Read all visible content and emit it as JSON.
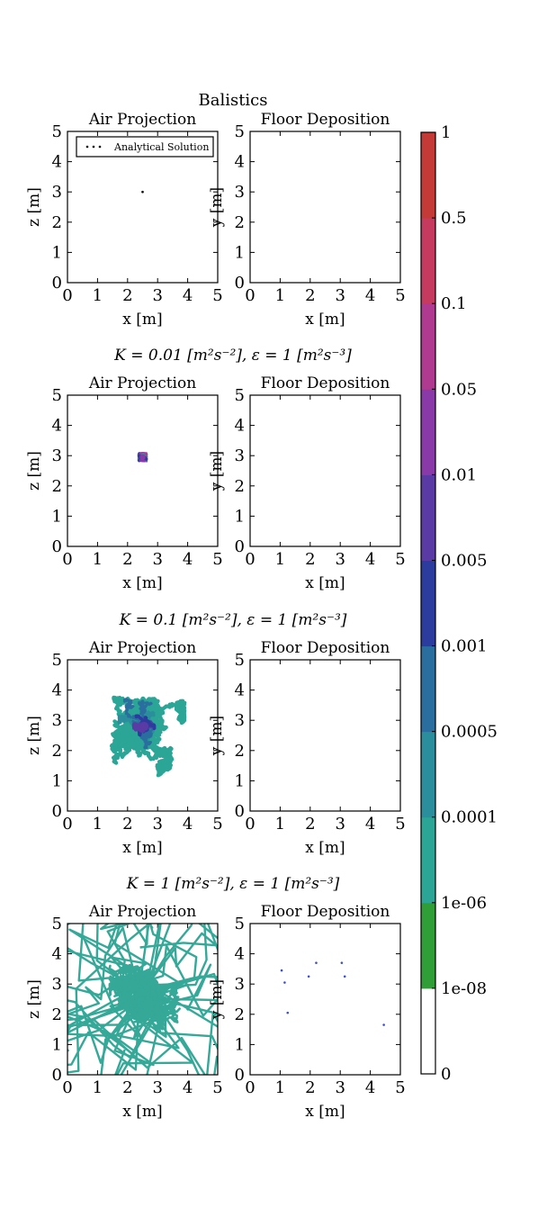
{
  "suptitle": "Balistics",
  "panel_titles": {
    "air": "Air Projection",
    "floor": "Floor Deposition"
  },
  "axis_labels": {
    "x": "x [m]",
    "z": "z [m]",
    "y": "y [m]"
  },
  "legend_label": "Analytical Solution",
  "row_titles": [
    "",
    "K = 0.01 [m²s⁻²], ε = 1 [m²s⁻³]",
    "K = 0.1 [m²s⁻²], ε = 1 [m²s⁻³]",
    "K = 1 [m²s⁻²], ε = 1 [m²s⁻³]"
  ],
  "colors": {
    "levels": [
      "#ffffff",
      "#2f9e37",
      "#2aa596",
      "#2a8e9c",
      "#2a6ea0",
      "#2b3c9e",
      "#5a3aa5",
      "#8a3aa8",
      "#b03a8f",
      "#c53a5e",
      "#c43a36",
      "#8a1f1f"
    ],
    "trajectory": "#35a898"
  },
  "chart_data": [
    {
      "type": "scatter",
      "title": "Air Projection",
      "xlabel": "x [m]",
      "ylabel": "z [m]",
      "xlim": [
        0,
        5
      ],
      "ylim": [
        0,
        5
      ],
      "x_ticks": [
        "0",
        "1",
        "2",
        "3",
        "4",
        "5"
      ],
      "y_ticks": [
        "0",
        "1",
        "2",
        "3",
        "4",
        "5"
      ],
      "legend": "top-left",
      "series": [
        {
          "name": "Analytical Solution",
          "x": [
            2.5
          ],
          "y": [
            3.0
          ]
        }
      ]
    },
    {
      "type": "scatter",
      "title": "Floor Deposition",
      "xlabel": "x [m]",
      "ylabel": "y [m]",
      "xlim": [
        0,
        5
      ],
      "ylim": [
        0,
        5
      ],
      "x_ticks": [
        "0",
        "1",
        "2",
        "3",
        "4",
        "5"
      ],
      "y_ticks": [
        "0",
        "1",
        "2",
        "3",
        "4",
        "5"
      ],
      "points": []
    },
    {
      "type": "heatmap",
      "title": "Air Projection",
      "xlabel": "x [m]",
      "ylabel": "z [m]",
      "xlim": [
        0,
        5
      ],
      "ylim": [
        0,
        5
      ],
      "x_ticks": [
        "0",
        "1",
        "2",
        "3",
        "4",
        "5"
      ],
      "y_ticks": [
        "0",
        "1",
        "2",
        "3",
        "4",
        "5"
      ],
      "cloud_center": [
        2.5,
        2.95
      ],
      "cloud_extent": [
        2.35,
        2.65,
        2.8,
        3.1
      ]
    },
    {
      "type": "scatter",
      "title": "Floor Deposition",
      "xlabel": "x [m]",
      "ylabel": "y [m]",
      "xlim": [
        0,
        5
      ],
      "ylim": [
        0,
        5
      ],
      "x_ticks": [
        "0",
        "1",
        "2",
        "3",
        "4",
        "5"
      ],
      "y_ticks": [
        "0",
        "1",
        "2",
        "3",
        "4",
        "5"
      ],
      "points": []
    },
    {
      "type": "heatmap",
      "title": "Air Projection",
      "xlabel": "x [m]",
      "ylabel": "z [m]",
      "xlim": [
        0,
        5
      ],
      "ylim": [
        0,
        5
      ],
      "x_ticks": [
        "0",
        "1",
        "2",
        "3",
        "4",
        "5"
      ],
      "y_ticks": [
        "0",
        "1",
        "2",
        "3",
        "4",
        "5"
      ],
      "cloud_center": [
        2.55,
        2.8
      ],
      "cloud_extent": [
        0.7,
        3.9,
        1.1,
        4.6
      ]
    },
    {
      "type": "scatter",
      "title": "Floor Deposition",
      "xlabel": "x [m]",
      "ylabel": "y [m]",
      "xlim": [
        0,
        5
      ],
      "ylim": [
        0,
        5
      ],
      "x_ticks": [
        "0",
        "1",
        "2",
        "3",
        "4",
        "5"
      ],
      "y_ticks": [
        "0",
        "1",
        "2",
        "3",
        "4",
        "5"
      ],
      "points": []
    },
    {
      "type": "heatmap",
      "title": "Air Projection",
      "xlabel": "x [m]",
      "ylabel": "z [m]",
      "xlim": [
        0,
        5
      ],
      "ylim": [
        0,
        5
      ],
      "x_ticks": [
        "0",
        "1",
        "2",
        "3",
        "4",
        "5"
      ],
      "y_ticks": [
        "0",
        "1",
        "2",
        "3",
        "4",
        "5"
      ],
      "cloud_center": [
        2.6,
        2.7
      ],
      "cloud_extent": [
        0,
        5,
        0,
        5
      ]
    },
    {
      "type": "scatter",
      "title": "Floor Deposition",
      "xlabel": "x [m]",
      "ylabel": "y [m]",
      "xlim": [
        0,
        5
      ],
      "ylim": [
        0,
        5
      ],
      "x_ticks": [
        "0",
        "1",
        "2",
        "3",
        "4",
        "5"
      ],
      "y_ticks": [
        "0",
        "1",
        "2",
        "3",
        "4",
        "5"
      ],
      "points": [
        {
          "x": 1.05,
          "y": 3.45
        },
        {
          "x": 1.15,
          "y": 3.05
        },
        {
          "x": 1.25,
          "y": 2.05
        },
        {
          "x": 1.95,
          "y": 3.25
        },
        {
          "x": 2.2,
          "y": 3.7
        },
        {
          "x": 3.05,
          "y": 3.7
        },
        {
          "x": 3.15,
          "y": 3.25
        },
        {
          "x": 4.45,
          "y": 1.65
        }
      ]
    },
    {
      "type": "heatmap",
      "title": "colorbar",
      "tick_labels": [
        "0",
        "1e-08",
        "1e-06",
        "0.0001",
        "0.0005",
        "0.001",
        "0.005",
        "0.01",
        "0.05",
        "0.1",
        "0.5",
        "1"
      ]
    }
  ]
}
